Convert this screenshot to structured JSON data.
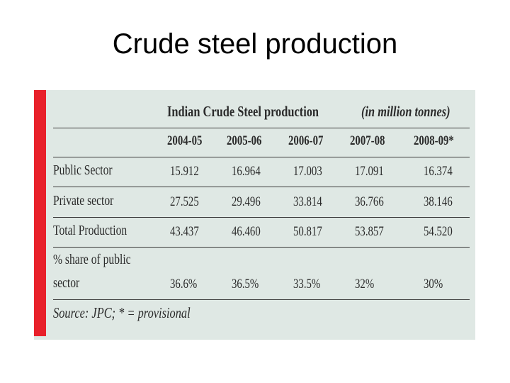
{
  "slide": {
    "title": "Crude steel production"
  },
  "table": {
    "title": "Indian Crude Steel production",
    "unit": "(in million tonnes)",
    "columns": [
      "2004-05",
      "2005-06",
      "2006-07",
      "2007-08",
      "2008-09*"
    ],
    "rows": [
      {
        "label": "Public Sector",
        "values": [
          "15.912",
          "16.964",
          "17.003",
          "17.091",
          "16.374"
        ]
      },
      {
        "label": "Private sector",
        "values": [
          "27.525",
          "29.496",
          "33.814",
          "36.766",
          "38.146"
        ]
      },
      {
        "label": "Total Production",
        "values": [
          "43.437",
          "46.460",
          "50.817",
          "53.857",
          "54.520"
        ]
      },
      {
        "label_line1": "% share of public",
        "label_line2": "sector",
        "values": [
          "36.6%",
          "36.5%",
          "33.5%",
          "32%",
          "30%"
        ]
      }
    ],
    "source": "Source: JPC; * = provisional"
  },
  "colors": {
    "panel": "#dfe8e4",
    "accent": "#e8202a",
    "text": "#2b2b2b"
  }
}
